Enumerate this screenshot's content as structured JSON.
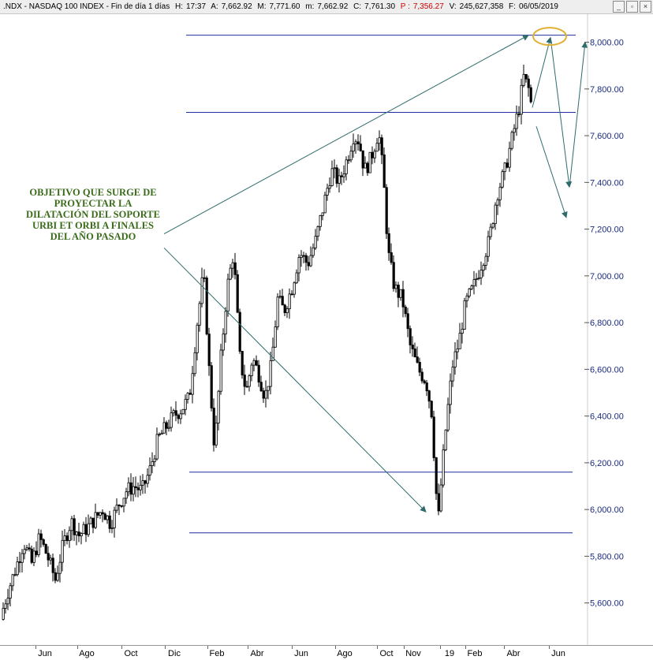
{
  "header": {
    "symbol": ".NDX - NASDAQ 100 INDEX - Fin de día 1 días",
    "h_label": "H:",
    "h_value": "17:37",
    "a_label": "A:",
    "a_value": "7,662.92",
    "m_label": "M:",
    "m_value": "7,771.60",
    "mn_label": "m:",
    "mn_value": "7,662.92",
    "c_label": "C:",
    "c_value": "7,761.30",
    "p_label": "P :",
    "p_value": "7,356.27",
    "v_label": "V:",
    "v_value": "245,627,358",
    "f_label": "F:",
    "f_value": "06/05/2019"
  },
  "annotation": "OBJETIVO QUE SURGE DE PROYECTAR LA DILATACIÓN DEL SOPORTE URBI ET ORBI A FINALES DEL AÑO PASADO",
  "colors": {
    "line": "#1f2fa0",
    "arrow": "#2f6b6b",
    "candle": "#000000",
    "ellipse": "#e0b030",
    "text_green": "#3a6b1a"
  },
  "chart_data": {
    "type": "candlestick",
    "title": "",
    "ylim": [
      5420,
      8120
    ],
    "y_ticks": [
      "5,600.00",
      "5,800.00",
      "6,000.00",
      "6,200.00",
      "6,400.00",
      "6,600.00",
      "6,800.00",
      "7,000.00",
      "7,200.00",
      "7,400.00",
      "7,600.00",
      "7,800.00",
      "8,000.00"
    ],
    "x_ticks": [
      "Jun",
      "Ago",
      "Oct",
      "Dic",
      "Feb",
      "Abr",
      "Jun",
      "Ago",
      "Oct",
      "Nov",
      "19",
      "Feb",
      "Abr",
      "Jun"
    ],
    "horizontal_levels": [
      8030,
      7700,
      6160,
      5900
    ],
    "price_path": [
      [
        0,
        5530
      ],
      [
        10,
        5650
      ],
      [
        20,
        5750
      ],
      [
        30,
        5860
      ],
      [
        40,
        5770
      ],
      [
        50,
        5880
      ],
      [
        60,
        5800
      ],
      [
        70,
        5700
      ],
      [
        80,
        5850
      ],
      [
        90,
        5950
      ],
      [
        100,
        5890
      ],
      [
        110,
        5920
      ],
      [
        120,
        5960
      ],
      [
        130,
        6000
      ],
      [
        140,
        5940
      ],
      [
        150,
        6020
      ],
      [
        160,
        6080
      ],
      [
        170,
        6100
      ],
      [
        180,
        6080
      ],
      [
        190,
        6170
      ],
      [
        200,
        6300
      ],
      [
        210,
        6350
      ],
      [
        220,
        6400
      ],
      [
        230,
        6430
      ],
      [
        240,
        6480
      ],
      [
        250,
        6800
      ],
      [
        258,
        7020
      ],
      [
        265,
        6600
      ],
      [
        272,
        6250
      ],
      [
        280,
        6650
      ],
      [
        288,
        6950
      ],
      [
        296,
        7100
      ],
      [
        304,
        6650
      ],
      [
        312,
        6500
      ],
      [
        320,
        6650
      ],
      [
        328,
        6580
      ],
      [
        336,
        6480
      ],
      [
        344,
        6620
      ],
      [
        352,
        6900
      ],
      [
        360,
        6850
      ],
      [
        370,
        6950
      ],
      [
        380,
        7100
      ],
      [
        390,
        7050
      ],
      [
        400,
        7150
      ],
      [
        410,
        7300
      ],
      [
        420,
        7450
      ],
      [
        430,
        7400
      ],
      [
        440,
        7500
      ],
      [
        448,
        7600
      ],
      [
        455,
        7580
      ],
      [
        462,
        7450
      ],
      [
        470,
        7500
      ],
      [
        480,
        7620
      ],
      [
        486,
        7420
      ],
      [
        492,
        7100
      ],
      [
        500,
        6950
      ],
      [
        510,
        6900
      ],
      [
        520,
        6700
      ],
      [
        530,
        6600
      ],
      [
        540,
        6550
      ],
      [
        548,
        6400
      ],
      [
        552,
        6100
      ],
      [
        556,
        5970
      ],
      [
        560,
        6150
      ],
      [
        566,
        6380
      ],
      [
        574,
        6620
      ],
      [
        582,
        6720
      ],
      [
        590,
        6880
      ],
      [
        600,
        6950
      ],
      [
        610,
        7050
      ],
      [
        620,
        7150
      ],
      [
        630,
        7350
      ],
      [
        640,
        7450
      ],
      [
        650,
        7600
      ],
      [
        658,
        7720
      ],
      [
        664,
        7850
      ],
      [
        670,
        7800
      ],
      [
        674,
        7720
      ]
    ],
    "projection_arrows": [
      {
        "from": [
          675,
          7720
        ],
        "to": [
          698,
          8020
        ]
      },
      {
        "from": [
          698,
          8020
        ],
        "to": [
          722,
          7380
        ]
      },
      {
        "from": [
          722,
          7380
        ],
        "to": [
          742,
          8000
        ]
      },
      {
        "from": [
          680,
          7640
        ],
        "to": [
          718,
          7250
        ]
      }
    ]
  }
}
